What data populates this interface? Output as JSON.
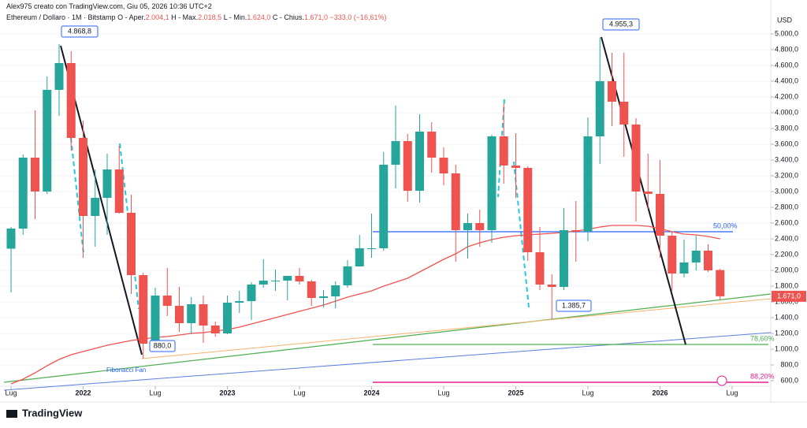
{
  "header": {
    "author": "Alex975 creato con TradingView.com, Giu 05, 2026 10:36 UTC+2",
    "symbol": "Ethereum / Dollaro · 1M · Bitstamp",
    "ohlc": [
      {
        "label": "O - Aper.",
        "value": "2.004,1"
      },
      {
        "label": "H - Max.",
        "value": "2.018,5"
      },
      {
        "label": "L - Min.",
        "value": "1.624,0"
      },
      {
        "label": "C - Chius.",
        "value": "1.671,0"
      }
    ],
    "change": "−333,0 (−16,61%)"
  },
  "logo": "TradingView",
  "chart_data": {
    "type": "candlestick",
    "y_axis_label": "USD",
    "up_color": "#26a69a",
    "down_color": "#ef5350",
    "ma_color": "#ef5350",
    "grid": true,
    "x": [
      "2021-07",
      "2021-08",
      "2021-09",
      "2021-10",
      "2021-11",
      "2021-12",
      "2022-01",
      "2022-02",
      "2022-03",
      "2022-04",
      "2022-05",
      "2022-06",
      "2022-07",
      "2022-08",
      "2022-09",
      "2022-10",
      "2022-11",
      "2022-12",
      "2023-01",
      "2023-02",
      "2023-03",
      "2023-04",
      "2023-05",
      "2023-06",
      "2023-07",
      "2023-08",
      "2023-09",
      "2023-10",
      "2023-11",
      "2023-12",
      "2024-01",
      "2024-02",
      "2024-03",
      "2024-04",
      "2024-05",
      "2024-06",
      "2024-07",
      "2024-08",
      "2024-09",
      "2024-10",
      "2024-11",
      "2024-12",
      "2025-01",
      "2025-02",
      "2025-03",
      "2025-04",
      "2025-05",
      "2025-06",
      "2025-07",
      "2025-08",
      "2025-09",
      "2025-10",
      "2025-11",
      "2025-12",
      "2026-01",
      "2026-02",
      "2026-03",
      "2026-04",
      "2026-05",
      "2026-06"
    ],
    "open": [
      2275,
      2530,
      3430,
      3000,
      4290,
      4630,
      3680,
      2690,
      2920,
      3280,
      2730,
      1940,
      1070,
      1680,
      1550,
      1330,
      1570,
      1300,
      1200,
      1590,
      1610,
      1820,
      1870,
      1870,
      1930,
      1860,
      1650,
      1670,
      1810,
      2050,
      2280,
      2280,
      3340,
      3640,
      3010,
      3760,
      3430,
      3230,
      2510,
      2600,
      2510,
      3700,
      3330,
      3300,
      2230,
      1820,
      1790,
      2510,
      2490,
      3700,
      4400,
      4140,
      3850,
      3000,
      2970,
      2440,
      1960,
      2100,
      2250,
      2004.1
    ],
    "high": [
      2550,
      3470,
      4030,
      4460,
      4868.8,
      4780,
      3900,
      3280,
      3480,
      3580,
      2960,
      1970,
      1780,
      2030,
      1790,
      1660,
      1680,
      1350,
      1680,
      1740,
      1850,
      2140,
      2010,
      1930,
      2030,
      1880,
      1750,
      1860,
      2130,
      2450,
      2720,
      3500,
      4090,
      3730,
      3980,
      3880,
      3560,
      3340,
      2720,
      2770,
      3720,
      4110,
      3740,
      3320,
      2550,
      1950,
      2790,
      2880,
      3940,
      4955.3,
      4760,
      4760,
      3930,
      3480,
      3400,
      2490,
      2390,
      2440,
      2330,
      2018.5
    ],
    "low": [
      1720,
      2450,
      2650,
      2970,
      3960,
      3520,
      2160,
      2300,
      2450,
      2720,
      1700,
      880,
      1000,
      1420,
      1220,
      1190,
      1080,
      1160,
      1190,
      1460,
      1370,
      1780,
      1740,
      1620,
      1820,
      1550,
      1530,
      1520,
      1780,
      2050,
      2160,
      2250,
      3040,
      2870,
      2860,
      3240,
      3080,
      2110,
      2150,
      2300,
      2350,
      3100,
      2920,
      2120,
      1750,
      1385.7,
      1750,
      2110,
      2370,
      3350,
      3830,
      3440,
      2620,
      2780,
      2160,
      1740,
      1910,
      2000,
      1980,
      1624
    ],
    "close": [
      2530,
      3430,
      3000,
      4290,
      4630,
      3680,
      2690,
      2920,
      3280,
      2730,
      1940,
      1070,
      1680,
      1550,
      1330,
      1570,
      1300,
      1200,
      1590,
      1610,
      1820,
      1870,
      1870,
      1930,
      1860,
      1650,
      1670,
      1810,
      2050,
      2280,
      2280,
      3340,
      3640,
      3010,
      3760,
      3430,
      3230,
      2510,
      2600,
      2510,
      3700,
      3330,
      3300,
      2230,
      1820,
      1790,
      2510,
      2490,
      3700,
      4400,
      4140,
      3850,
      3000,
      2970,
      2440,
      1960,
      2100,
      2250,
      2000,
      1671
    ],
    "last_label": "1.671,0",
    "ma": [
      560,
      620,
      700,
      790,
      870,
      930,
      970,
      1010,
      1050,
      1080,
      1110,
      1130,
      1150,
      1160,
      1180,
      1200,
      1210,
      1230,
      1250,
      1280,
      1320,
      1360,
      1400,
      1440,
      1480,
      1520,
      1560,
      1610,
      1660,
      1700,
      1740,
      1800,
      1850,
      1900,
      1980,
      2060,
      2140,
      2210,
      2300,
      2350,
      2390,
      2420,
      2440,
      2450,
      2460,
      2470,
      2480,
      2500,
      2520,
      2550,
      2570,
      2570,
      2570,
      2560,
      2530,
      2490,
      2460,
      2450,
      2430,
      2400
    ],
    "ylim": [
      530,
      5250
    ],
    "yticks": [
      {
        "value": 600,
        "label": "600,0"
      },
      {
        "value": 800,
        "label": "800,0"
      },
      {
        "value": 1000,
        "label": "1.000,0"
      },
      {
        "value": 1200,
        "label": "1.200,0"
      },
      {
        "value": 1400,
        "label": "1.400,0"
      },
      {
        "value": 1600,
        "label": "1.600,0"
      },
      {
        "value": 1800,
        "label": "1.800,0"
      },
      {
        "value": 2000,
        "label": "2.000,0"
      },
      {
        "value": 2200,
        "label": "2.200,0"
      },
      {
        "value": 2400,
        "label": "2.400,0"
      },
      {
        "value": 2600,
        "label": "2.600,0"
      },
      {
        "value": 2800,
        "label": "2.800,0"
      },
      {
        "value": 3000,
        "label": "3.000,0"
      },
      {
        "value": 3200,
        "label": "3.200,0"
      },
      {
        "value": 3400,
        "label": "3.400,0"
      },
      {
        "value": 3600,
        "label": "3.600,0"
      },
      {
        "value": 3800,
        "label": "3.800,0"
      },
      {
        "value": 4000,
        "label": "4.000,0"
      },
      {
        "value": 4200,
        "label": "4.200,0"
      },
      {
        "value": 4400,
        "label": "4.400,0"
      },
      {
        "value": 4600,
        "label": "4.600,0"
      },
      {
        "value": 4800,
        "label": "4.800,0"
      },
      {
        "value": 5000,
        "label": "5.000,0"
      }
    ],
    "xticks": [
      {
        "value": "2021-07",
        "label": "Lug"
      },
      {
        "value": "2022-01",
        "label": "2022"
      },
      {
        "value": "2022-07",
        "label": "Lug"
      },
      {
        "value": "2023-01",
        "label": "2023"
      },
      {
        "value": "2023-07",
        "label": "Lug"
      },
      {
        "value": "2024-01",
        "label": "2024"
      },
      {
        "value": "2024-07",
        "label": "Lug"
      },
      {
        "value": "2025-01",
        "label": "2025"
      },
      {
        "value": "2025-07",
        "label": "Lug"
      },
      {
        "value": "2026-01",
        "label": "2026"
      },
      {
        "value": "2026-07",
        "label": "Lug"
      }
    ],
    "annotations": [
      "4.868,8",
      "880,0",
      "4.955,3",
      "1.385,7",
      "50,00%",
      "78,60%",
      "88,20%",
      "Fibonacci Fan"
    ]
  }
}
